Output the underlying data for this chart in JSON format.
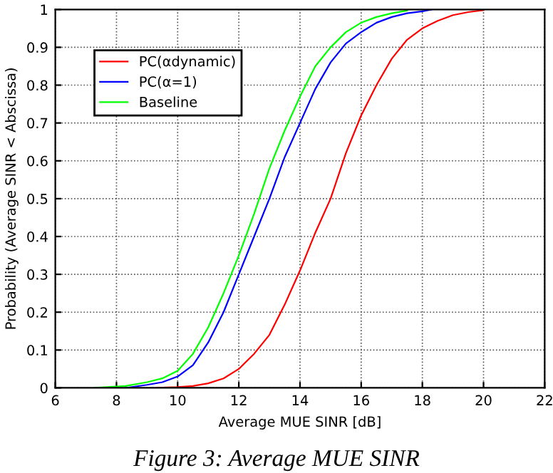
{
  "chart_data": {
    "type": "line",
    "xlabel": "Average MUE SINR [dB]",
    "ylabel": "Probability (Average SINR < Abscissa)",
    "annotations": [
      "Figure 3: Average MUE SINR"
    ],
    "xlim": [
      6,
      22
    ],
    "xticks": [
      6,
      8,
      10,
      12,
      14,
      16,
      18,
      20,
      22
    ],
    "ylim": [
      0,
      1
    ],
    "yticks": [
      0,
      0.1,
      0.2,
      0.3,
      0.4,
      0.5,
      0.6,
      0.7,
      0.8,
      0.9,
      1
    ],
    "grid": true,
    "legend": "top left",
    "marker": "none",
    "line_style": "solid",
    "series": [
      {
        "name": "PC(αdynamic)",
        "color": "#ff0000",
        "x": [
          9.3,
          10,
          10.5,
          11,
          11.5,
          12,
          12.5,
          13,
          13.5,
          14,
          14.5,
          15,
          15.5,
          16,
          16.5,
          17,
          17.5,
          18,
          18.5,
          19,
          19.5,
          20
        ],
        "values": [
          0,
          0.002,
          0.005,
          0.012,
          0.025,
          0.05,
          0.09,
          0.14,
          0.22,
          0.31,
          0.41,
          0.5,
          0.62,
          0.72,
          0.8,
          0.87,
          0.92,
          0.95,
          0.97,
          0.985,
          0.993,
          0.998
        ]
      },
      {
        "name": "PC(α=1)",
        "color": "#0000ff",
        "x": [
          8.3,
          9,
          9.5,
          10,
          10.5,
          11,
          11.5,
          12,
          12.5,
          13,
          13.5,
          14,
          14.5,
          15,
          15.5,
          16,
          16.5,
          17,
          17.5,
          18,
          18.3
        ],
        "values": [
          0,
          0.008,
          0.015,
          0.03,
          0.06,
          0.12,
          0.2,
          0.3,
          0.4,
          0.5,
          0.61,
          0.7,
          0.79,
          0.86,
          0.91,
          0.94,
          0.965,
          0.98,
          0.99,
          0.995,
          1
        ]
      },
      {
        "name": "Baseline",
        "color": "#00ff00",
        "x": [
          7.3,
          8.3,
          9,
          9.5,
          10,
          10.5,
          11,
          11.5,
          12,
          12.5,
          13,
          13.5,
          14,
          14.5,
          15,
          15.5,
          16,
          16.5,
          17,
          17.5
        ],
        "values": [
          0,
          0.005,
          0.015,
          0.025,
          0.045,
          0.09,
          0.16,
          0.25,
          0.35,
          0.46,
          0.58,
          0.68,
          0.77,
          0.85,
          0.9,
          0.94,
          0.965,
          0.98,
          0.99,
          0.997
        ]
      }
    ]
  }
}
